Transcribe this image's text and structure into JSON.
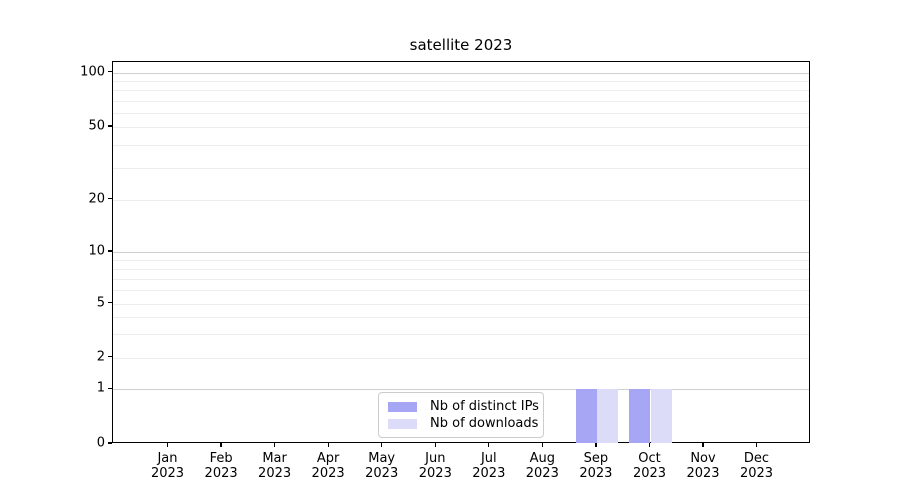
{
  "title": "satellite 2023",
  "colors": {
    "distinct_ips": "#a6a6f5",
    "downloads": "#dcdcf8",
    "grid_major": "#cfcfcf",
    "grid_minor": "#ededed",
    "axis": "#000000",
    "legend_border": "#cccccc"
  },
  "y_axis": {
    "tick_labels": [
      "100",
      "50",
      "20",
      "10",
      "5",
      "2",
      "1",
      "0"
    ],
    "tick_values": [
      100,
      50,
      20,
      10,
      5,
      2,
      1,
      0
    ]
  },
  "x_axis": {
    "months": [
      "Jan",
      "Feb",
      "Mar",
      "Apr",
      "May",
      "Jun",
      "Jul",
      "Aug",
      "Sep",
      "Oct",
      "Nov",
      "Dec"
    ],
    "year": "2023"
  },
  "legend": {
    "items": [
      {
        "label": "Nb of distinct IPs",
        "color_key": "distinct_ips"
      },
      {
        "label": "Nb of downloads",
        "color_key": "downloads"
      }
    ]
  },
  "chart_data": {
    "type": "bar",
    "title": "satellite 2023",
    "categories": [
      "Jan 2023",
      "Feb 2023",
      "Mar 2023",
      "Apr 2023",
      "May 2023",
      "Jun 2023",
      "Jul 2023",
      "Aug 2023",
      "Sep 2023",
      "Oct 2023",
      "Nov 2023",
      "Dec 2023"
    ],
    "series": [
      {
        "name": "Nb of distinct IPs",
        "color": "#a6a6f5",
        "values": [
          0,
          0,
          0,
          0,
          0,
          0,
          0,
          0,
          1,
          1,
          0,
          0
        ]
      },
      {
        "name": "Nb of downloads",
        "color": "#dcdcf8",
        "values": [
          0,
          0,
          0,
          0,
          0,
          0,
          0,
          0,
          1,
          1,
          0,
          0
        ]
      }
    ],
    "xlabel": "",
    "ylabel": "",
    "yscale": "symlog",
    "yticks": [
      100,
      50,
      20,
      10,
      5,
      2,
      1,
      0
    ],
    "ylim": [
      0,
      115
    ],
    "grid": "both-horizontal",
    "legend_position": "lower center"
  }
}
